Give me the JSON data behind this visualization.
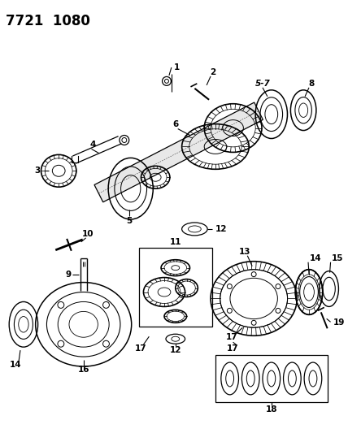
{
  "title": "7721  1080",
  "bg_color": "#ffffff",
  "line_color": "#000000",
  "line_width": 1.0,
  "label_fontsize": 7.5,
  "label_fontweight": "bold",
  "figsize": [
    4.28,
    5.33
  ],
  "dpi": 100
}
